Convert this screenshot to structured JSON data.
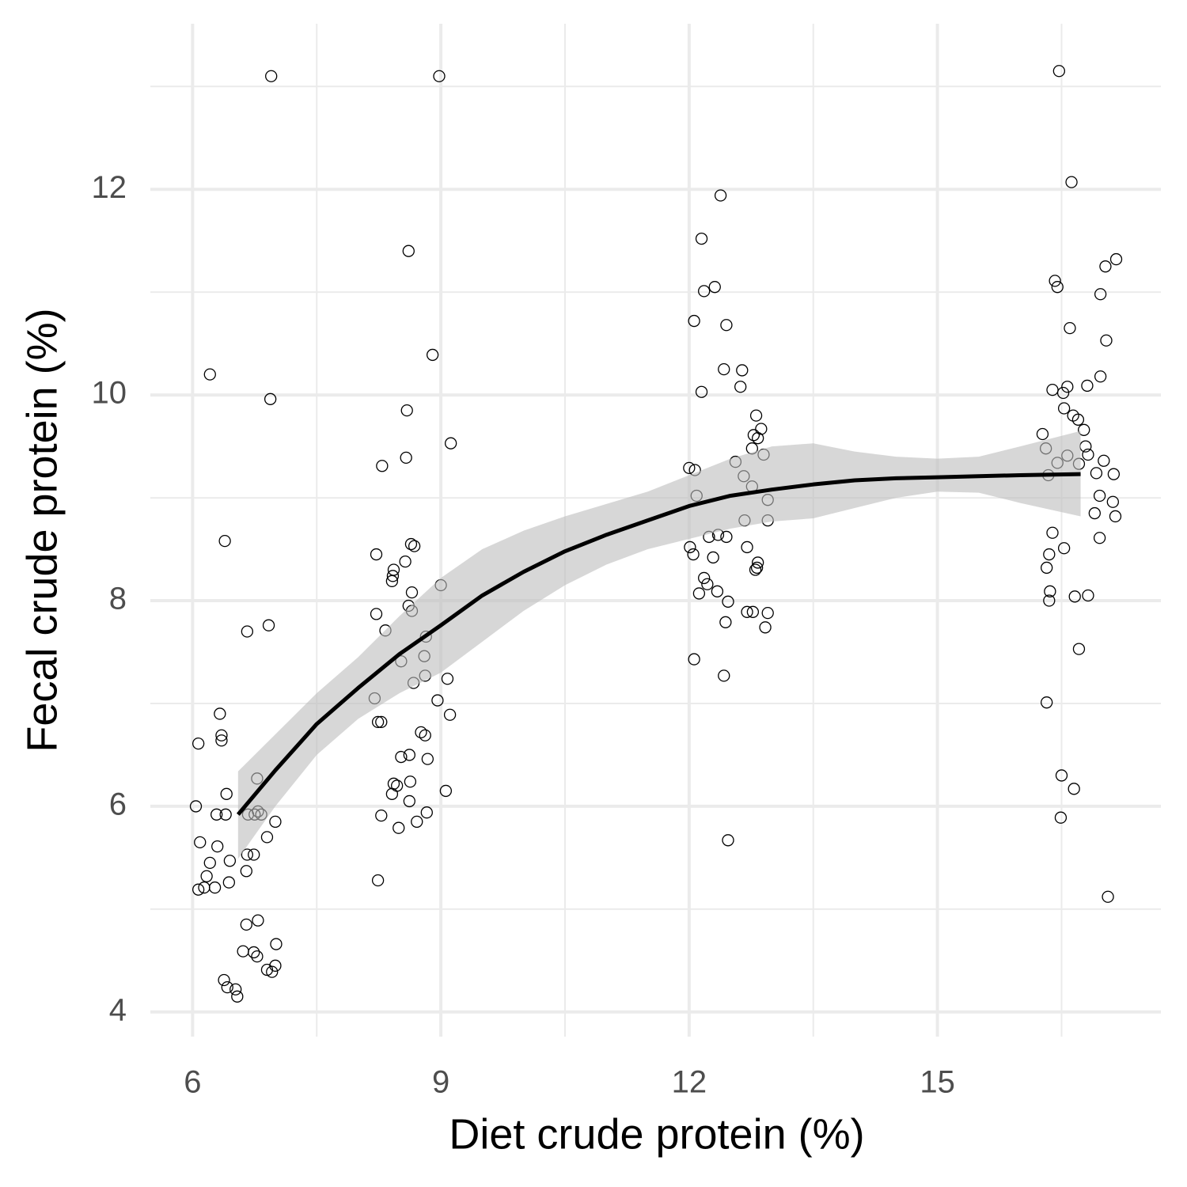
{
  "chart_data": {
    "type": "scatter",
    "x_label": "Diet crude protein (%)",
    "y_label": "Fecal crude protein (%)",
    "xlim": [
      5.49,
      17.7
    ],
    "ylim": [
      3.76,
      13.61
    ],
    "xticks": [
      6,
      9,
      12,
      15
    ],
    "yticks": [
      4,
      6,
      8,
      10,
      12
    ],
    "xminor": [
      7.5,
      10.5,
      13.5,
      16.5
    ],
    "yminor": [
      5,
      7,
      9,
      11,
      13
    ],
    "grid": true,
    "series": [
      {
        "color": "#000000",
        "x": [
          6.95,
          6.21,
          6.94,
          6.39,
          6.92,
          6.66,
          6.33,
          6.35,
          6.35,
          6.07,
          6.78,
          6.41,
          6.04,
          6.29,
          6.4,
          6.67,
          6.75,
          6.79,
          6.83,
          7.0,
          6.9,
          6.09,
          6.3,
          6.45,
          6.21,
          6.74,
          6.66,
          6.65,
          6.17,
          6.44,
          6.07,
          6.14,
          6.27,
          6.79,
          6.65,
          7.01,
          6.61,
          6.74,
          6.78,
          7.0,
          6.9,
          6.96,
          6.38,
          6.42,
          6.52,
          6.54,
          8.98,
          8.61,
          8.9,
          8.59,
          9.12,
          8.58,
          8.29,
          8.64,
          8.68,
          8.22,
          8.57,
          8.43,
          8.42,
          8.41,
          9.0,
          8.65,
          8.61,
          8.65,
          8.22,
          8.33,
          8.82,
          8.8,
          8.52,
          8.81,
          9.08,
          8.67,
          8.2,
          8.96,
          9.11,
          8.24,
          8.28,
          8.76,
          8.81,
          8.52,
          8.62,
          8.84,
          8.43,
          8.47,
          8.63,
          9.06,
          8.41,
          8.62,
          8.28,
          8.83,
          8.71,
          8.49,
          8.24,
          12.38,
          12.15,
          12.31,
          12.18,
          12.06,
          12.45,
          12.42,
          12.64,
          12.62,
          12.15,
          12.81,
          12.87,
          12.78,
          12.83,
          12.76,
          12.9,
          12.56,
          12.0,
          12.07,
          12.66,
          12.76,
          12.09,
          12.95,
          12.67,
          12.95,
          12.35,
          12.45,
          12.24,
          12.01,
          12.7,
          12.05,
          12.29,
          12.83,
          12.82,
          12.8,
          12.18,
          12.22,
          12.34,
          12.12,
          12.47,
          12.7,
          12.77,
          12.95,
          12.44,
          12.92,
          12.06,
          12.42,
          12.47,
          16.47,
          16.62,
          17.16,
          17.03,
          16.42,
          16.45,
          16.97,
          16.6,
          17.04,
          16.97,
          16.81,
          16.57,
          16.39,
          16.52,
          16.53,
          16.64,
          16.7,
          16.77,
          16.27,
          16.79,
          16.31,
          16.82,
          16.57,
          17.01,
          16.71,
          16.45,
          16.92,
          17.13,
          16.34,
          16.96,
          17.12,
          16.9,
          17.15,
          16.39,
          16.96,
          16.53,
          16.35,
          16.32,
          16.36,
          16.82,
          16.66,
          16.35,
          16.71,
          16.32,
          16.5,
          16.65,
          16.49,
          17.06
        ],
        "y": [
          13.1,
          10.2,
          9.96,
          8.58,
          7.76,
          7.7,
          6.9,
          6.69,
          6.64,
          6.61,
          6.27,
          6.12,
          6.0,
          5.92,
          5.92,
          5.92,
          5.92,
          5.95,
          5.92,
          5.85,
          5.7,
          5.65,
          5.61,
          5.47,
          5.45,
          5.53,
          5.53,
          5.37,
          5.32,
          5.26,
          5.19,
          5.21,
          5.21,
          4.89,
          4.85,
          4.66,
          4.59,
          4.58,
          4.54,
          4.45,
          4.41,
          4.39,
          4.31,
          4.24,
          4.22,
          4.15,
          13.1,
          11.4,
          10.39,
          9.85,
          9.53,
          9.39,
          9.31,
          8.55,
          8.53,
          8.45,
          8.38,
          8.3,
          8.24,
          8.19,
          8.15,
          8.08,
          7.95,
          7.9,
          7.87,
          7.71,
          7.65,
          7.46,
          7.41,
          7.27,
          7.24,
          7.2,
          7.05,
          7.03,
          6.89,
          6.82,
          6.82,
          6.72,
          6.69,
          6.48,
          6.5,
          6.46,
          6.22,
          6.2,
          6.24,
          6.15,
          6.12,
          6.05,
          5.91,
          5.94,
          5.85,
          5.79,
          5.28,
          11.94,
          11.52,
          11.05,
          11.01,
          10.72,
          10.68,
          10.25,
          10.24,
          10.08,
          10.03,
          9.8,
          9.67,
          9.61,
          9.58,
          9.48,
          9.42,
          9.35,
          9.29,
          9.27,
          9.21,
          9.11,
          9.02,
          8.98,
          8.78,
          8.78,
          8.64,
          8.62,
          8.62,
          8.52,
          8.52,
          8.45,
          8.42,
          8.37,
          8.32,
          8.3,
          8.22,
          8.16,
          8.09,
          8.07,
          7.99,
          7.89,
          7.89,
          7.88,
          7.79,
          7.74,
          7.43,
          7.27,
          5.67,
          13.15,
          12.07,
          11.32,
          11.25,
          11.11,
          11.05,
          10.98,
          10.65,
          10.53,
          10.18,
          10.09,
          10.08,
          10.05,
          10.02,
          9.87,
          9.8,
          9.76,
          9.66,
          9.62,
          9.5,
          9.48,
          9.42,
          9.41,
          9.36,
          9.33,
          9.34,
          9.24,
          9.23,
          9.22,
          9.02,
          8.96,
          8.85,
          8.82,
          8.66,
          8.61,
          8.51,
          8.45,
          8.32,
          8.09,
          8.05,
          8.04,
          8.0,
          7.53,
          7.01,
          6.3,
          6.17,
          5.89,
          5.12
        ]
      }
    ],
    "smooth": {
      "color": "#000000",
      "band_color": "#bdbdbd",
      "x": [
        6.55,
        7,
        7.5,
        8,
        8.5,
        9,
        9.5,
        10,
        10.5,
        11,
        11.5,
        12,
        12.5,
        13,
        13.5,
        14,
        14.5,
        15,
        15.5,
        16,
        16.73
      ],
      "y": [
        5.92,
        6.35,
        6.8,
        7.15,
        7.48,
        7.76,
        8.05,
        8.28,
        8.48,
        8.64,
        8.78,
        8.92,
        9.02,
        9.08,
        9.13,
        9.17,
        9.19,
        9.2,
        9.21,
        9.22,
        9.23
      ],
      "ymin": [
        5.49,
        6.0,
        6.5,
        6.85,
        7.1,
        7.3,
        7.6,
        7.9,
        8.15,
        8.35,
        8.5,
        8.6,
        8.7,
        8.77,
        8.8,
        8.9,
        9.0,
        9.06,
        9.05,
        8.95,
        8.82
      ],
      "ymax": [
        6.34,
        6.7,
        7.1,
        7.45,
        7.85,
        8.22,
        8.5,
        8.68,
        8.82,
        8.94,
        9.06,
        9.22,
        9.38,
        9.5,
        9.53,
        9.45,
        9.4,
        9.38,
        9.4,
        9.5,
        9.65
      ]
    }
  }
}
